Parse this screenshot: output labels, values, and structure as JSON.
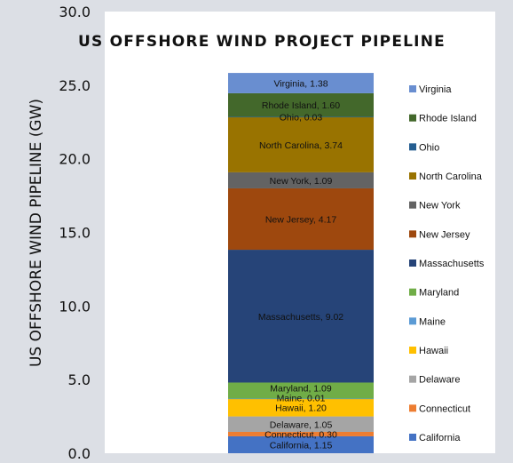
{
  "chart_data": {
    "type": "bar",
    "stacked": true,
    "title": "US OFFSHORE WIND PROJECT PIPELINE",
    "ylabel": "US OFFSHORE WIND PIPELINE (GW)",
    "xlabel": "",
    "ylim": [
      0,
      30
    ],
    "yticks": [
      "0.0",
      "5.0",
      "10.0",
      "15.0",
      "20.0",
      "25.0",
      "30.0"
    ],
    "grid": false,
    "legend_position": "right",
    "series": [
      {
        "name": "California",
        "value": 1.15,
        "label": "California, 1.15",
        "color": "#4472c4"
      },
      {
        "name": "Connecticut",
        "value": 0.3,
        "label": "Connecticut, 0.30",
        "color": "#ed7d31"
      },
      {
        "name": "Delaware",
        "value": 1.05,
        "label": "Delaware, 1.05",
        "color": "#a5a5a5"
      },
      {
        "name": "Hawaii",
        "value": 1.2,
        "label": "Hawaii, 1.20",
        "color": "#ffc000"
      },
      {
        "name": "Maine",
        "value": 0.01,
        "label": "Maine, 0.01",
        "color": "#5b9bd5"
      },
      {
        "name": "Maryland",
        "value": 1.09,
        "label": "Maryland, 1.09",
        "color": "#70ad47"
      },
      {
        "name": "Massachusetts",
        "value": 9.02,
        "label": "Massachusetts, 9.02",
        "color": "#264478"
      },
      {
        "name": "New Jersey",
        "value": 4.17,
        "label": "New Jersey, 4.17",
        "color": "#9e480e"
      },
      {
        "name": "New York",
        "value": 1.09,
        "label": "New York, 1.09",
        "color": "#636363"
      },
      {
        "name": "North Carolina",
        "value": 3.74,
        "label": "North Carolina, 3.74",
        "color": "#997300"
      },
      {
        "name": "Ohio",
        "value": 0.03,
        "label": "Ohio, 0.03",
        "color": "#255e91"
      },
      {
        "name": "Rhode Island",
        "value": 1.6,
        "label": "Rhode Island, 1.60",
        "color": "#43682b"
      },
      {
        "name": "Virginia",
        "value": 1.38,
        "label": "Virginia, 1.38",
        "color": "#698ed0"
      }
    ]
  }
}
